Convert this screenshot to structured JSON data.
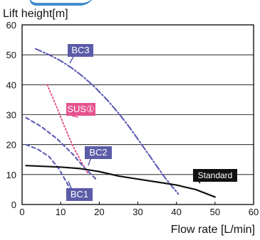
{
  "chart_data": {
    "type": "line",
    "title": "",
    "ylabel": "Lift height[m]",
    "xlabel": "Flow rate [L/min]",
    "xlim": [
      0,
      60
    ],
    "ylim": [
      0,
      60
    ],
    "x_ticks": [
      0,
      10,
      20,
      30,
      40,
      50,
      60
    ],
    "y_ticks": [
      0,
      10,
      20,
      30,
      40,
      50,
      60
    ],
    "grid": "horizontal",
    "series": [
      {
        "name": "BC3",
        "label_text": "BC3",
        "color": "#5555b3",
        "label_color": "#5b5ba8",
        "line_style": "dashdot",
        "x": [
          3.5,
          7,
          10,
          13,
          16,
          19,
          22,
          25,
          28,
          31,
          34,
          37,
          40.5
        ],
        "y": [
          52,
          50,
          48,
          45.5,
          42.5,
          39,
          35,
          30.5,
          25.5,
          20,
          14.5,
          9,
          3.5
        ]
      },
      {
        "name": "SUS①",
        "label_text": "SUS①",
        "color": "#e3508d",
        "label_color": "#e5528f",
        "line_style": "dotted",
        "x": [
          6.5,
          9,
          11,
          13,
          15,
          17
        ],
        "y": [
          40,
          32.5,
          26,
          20,
          15,
          10.5
        ]
      },
      {
        "name": "BC2",
        "label_text": "BC2",
        "color": "#5555b3",
        "label_color": "#5b5ba8",
        "line_style": "dashed",
        "x": [
          1,
          5,
          9,
          13,
          16,
          19.5
        ],
        "y": [
          29,
          26,
          22,
          17,
          12.5,
          8
        ]
      },
      {
        "name": "BC1",
        "label_text": "BC1",
        "color": "#5555b3",
        "label_color": "#5b5ba8",
        "line_style": "dashed",
        "x": [
          1,
          4,
          7,
          9.5,
          11.5,
          12.5
        ],
        "y": [
          20,
          18.5,
          16,
          12,
          7.5,
          5
        ]
      },
      {
        "name": "Standard",
        "label_text": "Standard",
        "color": "#111111",
        "label_color": "#111111",
        "line_style": "solid",
        "x": [
          1,
          10,
          15,
          20,
          25,
          30,
          35,
          40,
          45,
          50
        ],
        "y": [
          13,
          12.5,
          12,
          11,
          9.5,
          8.5,
          7.5,
          6.5,
          5,
          2.5
        ]
      }
    ],
    "annotations": [
      "BC3",
      "SUS①",
      "BC2",
      "BC1",
      "Standard"
    ]
  }
}
